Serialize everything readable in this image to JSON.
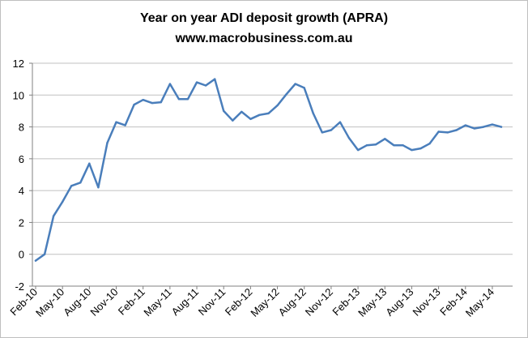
{
  "chart_data": {
    "type": "line",
    "title": "Year on year ADI deposit growth (APRA)",
    "subtitle": "www.macrobusiness.com.au",
    "xlabel": "",
    "ylabel": "",
    "ylim": [
      -2,
      12
    ],
    "y_ticks": [
      -2,
      0,
      2,
      4,
      6,
      8,
      10,
      12
    ],
    "grid": true,
    "legend": "none",
    "colors": {
      "line": "#4a7ebb",
      "grid": "#c0c0c0",
      "axis": "#808080"
    },
    "x_tick_labels": [
      "Feb-10",
      "May-10",
      "Aug-10",
      "Nov-10",
      "Feb-11",
      "May-11",
      "Aug-11",
      "Nov-11",
      "Feb-12",
      "May-12",
      "Aug-12",
      "Nov-12",
      "Feb-13",
      "May-13",
      "Aug-13",
      "Nov-13",
      "Feb-14",
      "May-14"
    ],
    "x_tick_every": 3,
    "series": [
      {
        "name": "Year on year ADI deposit growth",
        "categories": [
          "Feb-10",
          "Mar-10",
          "Apr-10",
          "May-10",
          "Jun-10",
          "Jul-10",
          "Aug-10",
          "Sep-10",
          "Oct-10",
          "Nov-10",
          "Dec-10",
          "Jan-11",
          "Feb-11",
          "Mar-11",
          "Apr-11",
          "May-11",
          "Jun-11",
          "Jul-11",
          "Aug-11",
          "Sep-11",
          "Oct-11",
          "Nov-11",
          "Dec-11",
          "Jan-12",
          "Feb-12",
          "Mar-12",
          "Apr-12",
          "May-12",
          "Jun-12",
          "Jul-12",
          "Aug-12",
          "Sep-12",
          "Oct-12",
          "Nov-12",
          "Dec-12",
          "Jan-13",
          "Feb-13",
          "Mar-13",
          "Apr-13",
          "May-13",
          "Jun-13",
          "Jul-13",
          "Aug-13",
          "Sep-13",
          "Oct-13",
          "Nov-13",
          "Dec-13",
          "Jan-14",
          "Feb-14",
          "Mar-14",
          "Apr-14",
          "May-14",
          "Jun-14"
        ],
        "values": [
          -0.4,
          0.0,
          2.4,
          3.3,
          4.3,
          4.5,
          5.7,
          4.2,
          7.0,
          8.3,
          8.1,
          9.4,
          9.7,
          9.5,
          9.55,
          10.7,
          9.75,
          9.75,
          10.8,
          10.6,
          11.0,
          9.0,
          8.4,
          8.95,
          8.5,
          8.75,
          8.85,
          9.35,
          10.05,
          10.7,
          10.45,
          8.85,
          7.65,
          7.8,
          8.3,
          7.3,
          6.55,
          6.85,
          6.9,
          7.25,
          6.85,
          6.85,
          6.55,
          6.65,
          6.95,
          7.7,
          7.65,
          7.8,
          8.1,
          7.9,
          8.0,
          8.15,
          8.0
        ]
      }
    ]
  }
}
